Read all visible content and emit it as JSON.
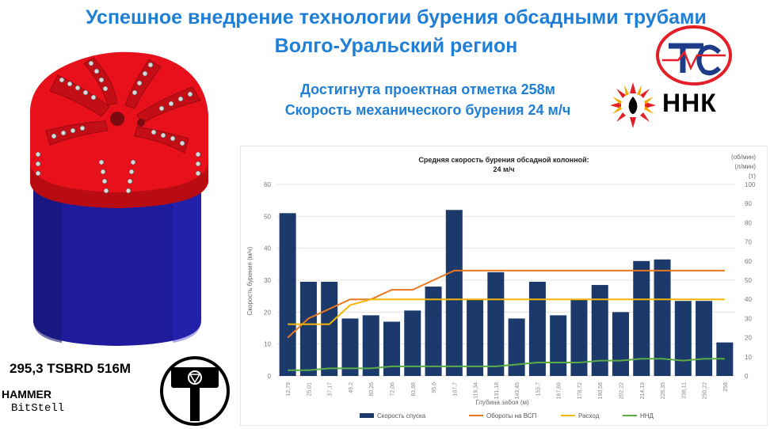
{
  "slide": {
    "title_line1": "Успешное внедрение технологии бурения обсадными трубами",
    "title_line2": "Волго-Уральский регион",
    "subtitle_line1": "Достигнута проектная отметка 258м",
    "subtitle_line2": "Скорость механического бурения 24 м/ч",
    "bit_label": "295,3 TSBRD 516M",
    "hammer_line1": "HAMMER",
    "hammer_line2": "BitStell",
    "nnk_text": "ННК",
    "colors": {
      "title": "#1f7fd6",
      "bit_red": "#e8101a",
      "bit_blue": "#1e1c9c",
      "logo_red": "#e41e26",
      "logo_blue": "#1f3c88"
    },
    "icons": [
      "ts-logo",
      "nnk-flame-logo",
      "drill-bit-image",
      "hammer-logo"
    ]
  },
  "chart_data": {
    "type": "bar",
    "title_line1": "Средняя скорость бурения обсадной колонной:",
    "title_line2": "24 м/ч",
    "xlabel": "Глубина забоя (м)",
    "ylabel": "Скорость бурения (м/ч)",
    "y2label_line1": "(об/мин)",
    "y2label_line2": "(л/мин)",
    "y2label_line3": "(т)",
    "ylim": [
      0,
      60
    ],
    "y2lim": [
      0,
      100
    ],
    "yticks": [
      "0",
      "10",
      "20",
      "30",
      "40",
      "50",
      "60"
    ],
    "y2ticks": [
      "0",
      "10",
      "20",
      "30",
      "40",
      "50",
      "60",
      "70",
      "80",
      "90",
      "100"
    ],
    "categories": [
      "12,79",
      "25,01",
      "37,17",
      "49,2",
      "60,26",
      "72,06",
      "83,88",
      "95,6",
      "107,7",
      "119,34",
      "131,18",
      "143,45",
      "155,7",
      "167,69",
      "178,72",
      "190,58",
      "202,22",
      "214,19",
      "226,35",
      "238,11",
      "250,22",
      "258"
    ],
    "series": [
      {
        "name": "Скорость спуска",
        "kind": "bar",
        "axis": "left",
        "color": "#1b3a6b",
        "values": [
          51,
          29.5,
          29.5,
          18,
          19,
          17,
          20.5,
          28,
          52,
          24,
          32.5,
          18,
          29.5,
          19,
          24,
          28.5,
          20,
          36,
          36.5,
          23.5,
          23.5,
          10.5
        ]
      },
      {
        "name": "Обороты на ВСП",
        "kind": "line",
        "axis": "right",
        "color": "#e87722",
        "values": [
          20,
          30,
          35,
          40,
          40,
          45,
          45,
          50,
          55,
          55,
          55,
          55,
          55,
          55,
          55,
          55,
          55,
          55,
          55,
          55,
          55,
          55
        ]
      },
      {
        "name": "Расход",
        "kind": "line",
        "axis": "right",
        "color": "#f2b705",
        "values": [
          27,
          27,
          27,
          37,
          40,
          40,
          40,
          40,
          40,
          40,
          40,
          40,
          40,
          40,
          40,
          40,
          40,
          40,
          40,
          40,
          40,
          40
        ]
      },
      {
        "name": "ННД",
        "kind": "line",
        "axis": "right",
        "color": "#5aac44",
        "values": [
          3,
          3,
          4,
          4,
          4,
          5,
          5,
          5,
          5,
          5,
          5,
          6,
          7,
          7,
          7,
          8,
          8,
          9,
          9,
          8,
          9,
          9
        ]
      }
    ],
    "legend_position": "bottom",
    "grid": true
  }
}
